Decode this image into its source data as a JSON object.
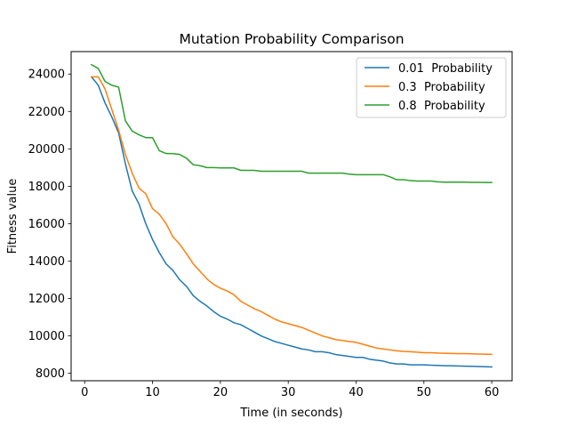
{
  "chart_data": {
    "type": "line",
    "title": "Mutation Probability Comparison",
    "xlabel": "Time (in seconds)",
    "ylabel": "Fitness value",
    "xlim": [
      -2,
      63
    ],
    "ylim": [
      7600,
      25200
    ],
    "xticks": [
      0,
      10,
      20,
      30,
      40,
      50,
      60
    ],
    "yticks": [
      8000,
      10000,
      12000,
      14000,
      16000,
      18000,
      20000,
      22000,
      24000
    ],
    "grid": false,
    "legend_position": "upper right",
    "x": [
      1,
      2,
      3,
      4,
      5,
      6,
      7,
      8,
      9,
      10,
      11,
      12,
      13,
      14,
      15,
      16,
      17,
      18,
      19,
      20,
      21,
      22,
      23,
      24,
      25,
      26,
      27,
      28,
      29,
      30,
      31,
      32,
      33,
      34,
      35,
      36,
      37,
      38,
      39,
      40,
      41,
      42,
      43,
      44,
      45,
      46,
      47,
      48,
      49,
      50,
      51,
      52,
      53,
      54,
      55,
      56,
      57,
      58,
      59,
      60
    ],
    "series": [
      {
        "name": "0.01  Probability",
        "color": "#1f77b4",
        "values": [
          23850,
          23400,
          22450,
          21700,
          20850,
          19200,
          17750,
          17050,
          16000,
          15150,
          14450,
          13850,
          13500,
          13000,
          12650,
          12150,
          11850,
          11600,
          11300,
          11050,
          10900,
          10700,
          10600,
          10400,
          10200,
          10000,
          9850,
          9700,
          9600,
          9500,
          9400,
          9300,
          9250,
          9150,
          9150,
          9100,
          9000,
          8950,
          8900,
          8850,
          8850,
          8750,
          8700,
          8650,
          8550,
          8500,
          8500,
          8450,
          8450,
          8450,
          8430,
          8420,
          8400,
          8400,
          8390,
          8380,
          8370,
          8360,
          8350,
          8340
        ]
      },
      {
        "name": "0.3  Probability",
        "color": "#ff7f0e",
        "values": [
          23850,
          23850,
          23200,
          22100,
          21000,
          19700,
          18700,
          17900,
          17600,
          16800,
          16500,
          16000,
          15300,
          14900,
          14400,
          13850,
          13450,
          13050,
          12750,
          12550,
          12400,
          12200,
          11850,
          11650,
          11450,
          11300,
          11100,
          10900,
          10750,
          10650,
          10550,
          10450,
          10300,
          10150,
          10000,
          9900,
          9800,
          9750,
          9700,
          9650,
          9550,
          9450,
          9350,
          9300,
          9250,
          9200,
          9170,
          9150,
          9130,
          9100,
          9100,
          9080,
          9070,
          9060,
          9050,
          9050,
          9040,
          9030,
          9020,
          9010
        ]
      },
      {
        "name": "0.8  Probability",
        "color": "#2ca02c",
        "values": [
          24500,
          24300,
          23600,
          23400,
          23300,
          21500,
          20950,
          20750,
          20600,
          20600,
          19900,
          19750,
          19750,
          19700,
          19500,
          19150,
          19100,
          19000,
          19000,
          18980,
          18980,
          18980,
          18850,
          18850,
          18850,
          18800,
          18800,
          18800,
          18800,
          18800,
          18800,
          18800,
          18700,
          18700,
          18700,
          18700,
          18700,
          18700,
          18650,
          18620,
          18620,
          18620,
          18620,
          18620,
          18500,
          18350,
          18350,
          18300,
          18280,
          18280,
          18280,
          18240,
          18220,
          18220,
          18220,
          18220,
          18210,
          18210,
          18200,
          18200
        ]
      }
    ]
  }
}
